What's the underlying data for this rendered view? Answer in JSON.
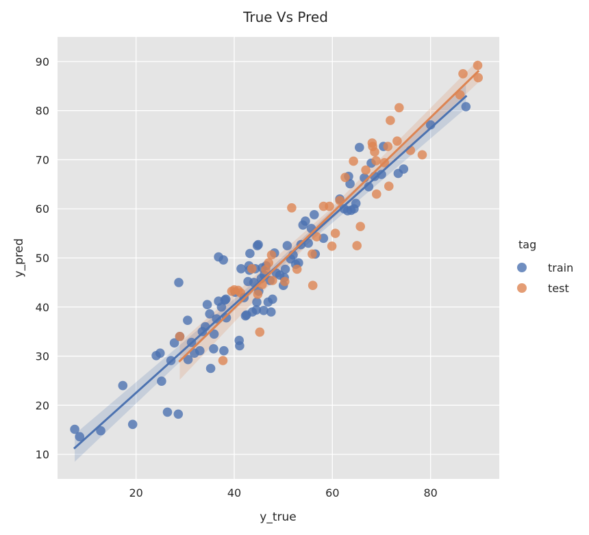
{
  "chart_data": {
    "type": "scatter",
    "title": "True Vs Pred",
    "xlabel": "y_true",
    "ylabel": "y_pred",
    "xlim": [
      4,
      94
    ],
    "ylim": [
      5,
      95
    ],
    "xticks": [
      20,
      40,
      60,
      80
    ],
    "yticks": [
      10,
      20,
      30,
      40,
      50,
      60,
      70,
      80,
      90
    ],
    "grid": true,
    "legend": {
      "title": "tag",
      "placement": "right"
    },
    "series": [
      {
        "name": "train",
        "color": "#4c72b0",
        "points": [
          [
            7.5,
            15.1
          ],
          [
            8.5,
            13.6
          ],
          [
            12.8,
            14.8
          ],
          [
            17.3,
            24.0
          ],
          [
            19.3,
            16.1
          ],
          [
            24.1,
            30.1
          ],
          [
            24.9,
            30.6
          ],
          [
            25.2,
            24.9
          ],
          [
            26.4,
            18.6
          ],
          [
            27.1,
            29.1
          ],
          [
            27.8,
            32.7
          ],
          [
            28.6,
            18.2
          ],
          [
            28.7,
            45.0
          ],
          [
            28.9,
            34.0
          ],
          [
            30.5,
            37.3
          ],
          [
            30.6,
            29.3
          ],
          [
            31.3,
            32.8
          ],
          [
            31.9,
            30.6
          ],
          [
            33.0,
            31.1
          ],
          [
            33.5,
            35.0
          ],
          [
            34.1,
            36.0
          ],
          [
            34.5,
            40.5
          ],
          [
            35.0,
            38.6
          ],
          [
            35.2,
            27.5
          ],
          [
            35.8,
            31.5
          ],
          [
            35.9,
            34.5
          ],
          [
            36.4,
            37.6
          ],
          [
            36.8,
            50.2
          ],
          [
            36.8,
            41.2
          ],
          [
            37.4,
            40.0
          ],
          [
            37.8,
            49.6
          ],
          [
            37.9,
            31.1
          ],
          [
            38.1,
            41.4
          ],
          [
            38.4,
            37.8
          ],
          [
            38.3,
            41.6
          ],
          [
            40.2,
            43.0
          ],
          [
            41.0,
            33.2
          ],
          [
            41.1,
            32.1
          ],
          [
            41.4,
            47.8
          ],
          [
            42.0,
            41.9
          ],
          [
            42.3,
            38.2
          ],
          [
            42.5,
            38.4
          ],
          [
            42.8,
            45.2
          ],
          [
            43.0,
            48.4
          ],
          [
            43.1,
            47.5
          ],
          [
            43.2,
            50.9
          ],
          [
            43.7,
            39.0
          ],
          [
            44.0,
            45.0
          ],
          [
            44.3,
            47.8
          ],
          [
            44.5,
            39.4
          ],
          [
            44.6,
            41.0
          ],
          [
            44.7,
            52.5
          ],
          [
            44.9,
            52.7
          ],
          [
            45.0,
            43.2
          ],
          [
            45.5,
            45.8
          ],
          [
            45.7,
            48.0
          ],
          [
            46.0,
            39.3
          ],
          [
            46.1,
            46.5
          ],
          [
            46.5,
            48.4
          ],
          [
            46.9,
            41.0
          ],
          [
            47.3,
            45.4
          ],
          [
            47.5,
            39.0
          ],
          [
            47.8,
            41.6
          ],
          [
            48.2,
            51.0
          ],
          [
            48.6,
            46.9
          ],
          [
            49.3,
            46.5
          ],
          [
            50.0,
            44.4
          ],
          [
            50.2,
            46.0
          ],
          [
            50.4,
            47.7
          ],
          [
            50.8,
            52.5
          ],
          [
            51.5,
            49.8
          ],
          [
            52.0,
            50.6
          ],
          [
            52.5,
            48.7
          ],
          [
            53.1,
            49.0
          ],
          [
            53.6,
            52.7
          ],
          [
            54.0,
            56.7
          ],
          [
            54.5,
            57.5
          ],
          [
            55.1,
            53.0
          ],
          [
            55.7,
            56.0
          ],
          [
            56.3,
            58.8
          ],
          [
            56.5,
            50.8
          ],
          [
            58.2,
            54.0
          ],
          [
            61.5,
            62.0
          ],
          [
            62.4,
            60.0
          ],
          [
            63.1,
            59.6
          ],
          [
            63.3,
            66.6
          ],
          [
            63.6,
            65.1
          ],
          [
            63.8,
            59.7
          ],
          [
            64.4,
            60.0
          ],
          [
            64.8,
            61.1
          ],
          [
            65.5,
            72.5
          ],
          [
            66.5,
            66.3
          ],
          [
            67.4,
            64.5
          ],
          [
            67.9,
            69.3
          ],
          [
            68.6,
            66.6
          ],
          [
            70.0,
            67.0
          ],
          [
            70.4,
            72.7
          ],
          [
            73.4,
            67.2
          ],
          [
            74.5,
            68.1
          ],
          [
            80.0,
            77.1
          ],
          [
            87.2,
            80.8
          ]
        ]
      },
      {
        "name": "test",
        "color": "#dd8452",
        "points": [
          [
            28.9,
            34.0
          ],
          [
            37.7,
            29.1
          ],
          [
            39.5,
            43.2
          ],
          [
            40.0,
            43.5
          ],
          [
            40.8,
            43.4
          ],
          [
            41.3,
            42.9
          ],
          [
            43.6,
            47.8
          ],
          [
            44.8,
            42.6
          ],
          [
            45.2,
            34.9
          ],
          [
            45.7,
            44.6
          ],
          [
            46.4,
            47.6
          ],
          [
            47.0,
            49.0
          ],
          [
            47.6,
            50.6
          ],
          [
            47.8,
            45.4
          ],
          [
            50.3,
            45.2
          ],
          [
            51.7,
            60.2
          ],
          [
            52.8,
            47.7
          ],
          [
            55.9,
            50.8
          ],
          [
            56.0,
            44.4
          ],
          [
            56.8,
            54.3
          ],
          [
            58.2,
            60.5
          ],
          [
            59.4,
            60.5
          ],
          [
            59.9,
            52.4
          ],
          [
            60.6,
            55.0
          ],
          [
            61.5,
            61.7
          ],
          [
            62.6,
            66.4
          ],
          [
            64.3,
            69.7
          ],
          [
            65.0,
            52.5
          ],
          [
            65.7,
            56.4
          ],
          [
            66.8,
            67.9
          ],
          [
            68.1,
            73.4
          ],
          [
            68.2,
            72.7
          ],
          [
            68.6,
            71.6
          ],
          [
            68.9,
            69.8
          ],
          [
            69.0,
            63.0
          ],
          [
            70.6,
            69.4
          ],
          [
            71.3,
            72.7
          ],
          [
            71.5,
            64.6
          ],
          [
            71.8,
            78.0
          ],
          [
            73.2,
            73.8
          ],
          [
            73.6,
            80.6
          ],
          [
            75.9,
            71.9
          ],
          [
            78.3,
            71.0
          ],
          [
            86.0,
            83.2
          ],
          [
            86.6,
            87.5
          ],
          [
            89.6,
            89.2
          ],
          [
            89.7,
            86.7
          ]
        ]
      }
    ],
    "regression": [
      {
        "series": "train",
        "x": [
          7.5,
          87.2
        ],
        "y": [
          11.3,
          82.9
        ],
        "ci": [
          2.8,
          0.8,
          2.4
        ]
      },
      {
        "series": "test",
        "x": [
          28.9,
          89.7
        ],
        "y": [
          29.0,
          88.0
        ],
        "ci": [
          3.8,
          1.2,
          2.3
        ]
      }
    ]
  }
}
